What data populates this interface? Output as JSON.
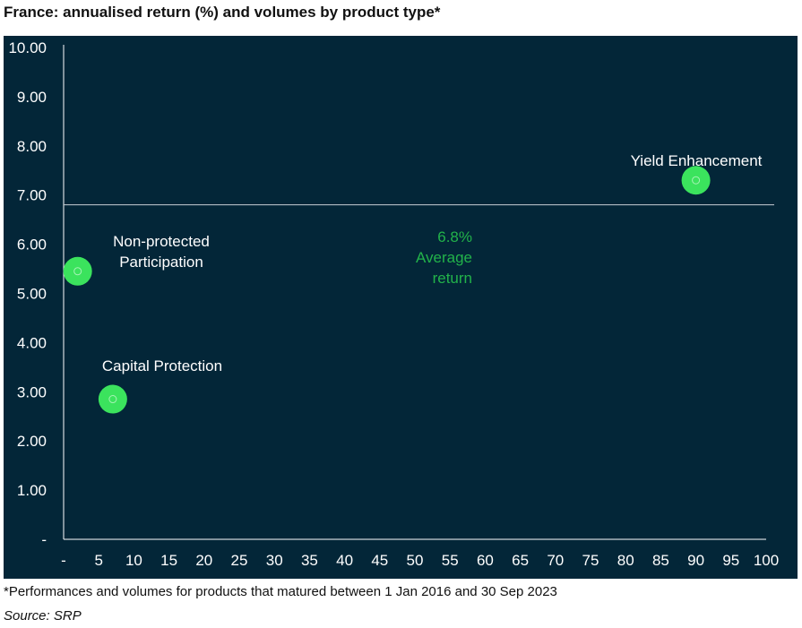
{
  "title": "France: annualised return (%) and volumes by product type*",
  "footnote": "*Performances and volumes for products that matured between 1 Jan 2016 and 30 Sep 2023",
  "source": "Source: SRP",
  "colors": {
    "background": "#032638",
    "axis": "#ffffff",
    "point": "#3be35d",
    "average_label": "#22b34a"
  },
  "chart_data": {
    "type": "scatter",
    "title": "France: annualised return (%) and volumes by product type*",
    "xlabel": "",
    "ylabel": "",
    "xlim": [
      0,
      100
    ],
    "ylim": [
      0,
      10
    ],
    "x_ticks": [
      0,
      5,
      10,
      15,
      20,
      25,
      30,
      35,
      40,
      45,
      50,
      55,
      60,
      65,
      70,
      75,
      80,
      85,
      90,
      95,
      100
    ],
    "x_tick_labels": [
      "-",
      "5",
      "10",
      "15",
      "20",
      "25",
      "30",
      "35",
      "40",
      "45",
      "50",
      "55",
      "60",
      "65",
      "70",
      "75",
      "80",
      "85",
      "90",
      "95",
      "100"
    ],
    "y_ticks": [
      0,
      1,
      2,
      3,
      4,
      5,
      6,
      7,
      8,
      9,
      10
    ],
    "y_tick_labels": [
      "-",
      "1.00",
      "2.00",
      "3.00",
      "4.00",
      "5.00",
      "6.00",
      "7.00",
      "8.00",
      "9.00",
      "10.00"
    ],
    "grid": false,
    "points": [
      {
        "label": "Non-protected Participation",
        "x": 2,
        "y": 5.45
      },
      {
        "label": "Capital Protection",
        "x": 7,
        "y": 2.85
      },
      {
        "label": "Yield Enhancement",
        "x": 90,
        "y": 7.3
      }
    ],
    "reference_line": {
      "y": 6.8,
      "label_lines": [
        "6.8%",
        "Average",
        "return"
      ]
    }
  }
}
